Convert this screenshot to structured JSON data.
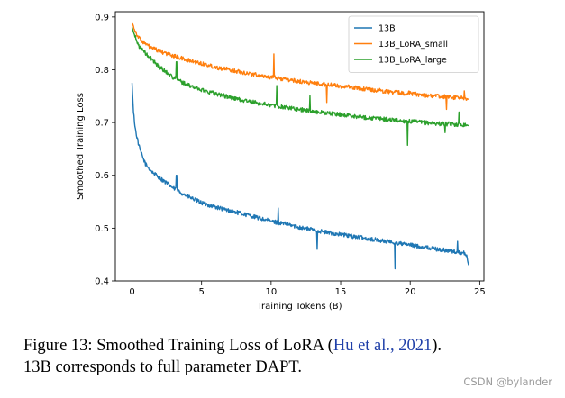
{
  "chart_data": {
    "type": "line",
    "xlabel": "Training Tokens (B)",
    "ylabel": "Smoothed Training Loss",
    "xlim": [
      -1.2,
      25.3
    ],
    "ylim": [
      0.4,
      0.91
    ],
    "xticks": [
      0,
      5,
      10,
      15,
      20,
      25
    ],
    "yticks": [
      0.4,
      0.5,
      0.6,
      0.7,
      0.8,
      0.9
    ],
    "xtick_labels": [
      "0",
      "5",
      "10",
      "15",
      "20",
      "25"
    ],
    "ytick_labels": [
      "0.4",
      "0.5",
      "0.6",
      "0.7",
      "0.8",
      "0.9"
    ],
    "legend_position": "top-right",
    "series": [
      {
        "name": "13B",
        "color": "#1f77b4",
        "x": [
          0,
          0.1,
          0.25,
          0.5,
          0.75,
          1,
          1.5,
          2,
          3,
          4,
          5,
          6,
          7,
          8,
          9,
          10,
          11,
          12,
          13,
          14,
          15,
          16,
          17,
          18,
          19,
          20,
          21,
          22,
          23,
          24,
          24.2
        ],
        "y": [
          0.775,
          0.72,
          0.685,
          0.655,
          0.635,
          0.62,
          0.605,
          0.595,
          0.575,
          0.56,
          0.548,
          0.54,
          0.533,
          0.527,
          0.52,
          0.513,
          0.508,
          0.502,
          0.497,
          0.492,
          0.488,
          0.484,
          0.48,
          0.476,
          0.472,
          0.468,
          0.464,
          0.46,
          0.456,
          0.452,
          0.43
        ],
        "noise": 0.004,
        "spikes": [
          {
            "x": 3.2,
            "y": 0.6
          },
          {
            "x": 10.5,
            "y": 0.538
          },
          {
            "x": 13.3,
            "y": 0.46
          },
          {
            "x": 18.9,
            "y": 0.423
          },
          {
            "x": 23.4,
            "y": 0.475
          }
        ]
      },
      {
        "name": "13B_LoRA_small",
        "color": "#ff7f0e",
        "x": [
          0,
          0.25,
          0.5,
          1,
          1.5,
          2,
          3,
          4,
          5,
          6,
          7,
          8,
          9,
          10,
          11,
          12,
          13,
          14,
          15,
          16,
          17,
          18,
          19,
          20,
          21,
          22,
          23,
          24,
          24.2
        ],
        "y": [
          0.89,
          0.872,
          0.86,
          0.848,
          0.84,
          0.835,
          0.826,
          0.818,
          0.812,
          0.805,
          0.8,
          0.795,
          0.79,
          0.786,
          0.782,
          0.778,
          0.775,
          0.772,
          0.769,
          0.766,
          0.763,
          0.76,
          0.757,
          0.755,
          0.752,
          0.75,
          0.748,
          0.746,
          0.744
        ],
        "noise": 0.004,
        "spikes": [
          {
            "x": 10.2,
            "y": 0.83
          },
          {
            "x": 14,
            "y": 0.738
          },
          {
            "x": 19.9,
            "y": 0.76
          },
          {
            "x": 22.6,
            "y": 0.725
          },
          {
            "x": 23.9,
            "y": 0.76
          }
        ]
      },
      {
        "name": "13B_LoRA_large",
        "color": "#2ca02c",
        "x": [
          0,
          0.25,
          0.5,
          1,
          1.5,
          2,
          3,
          4,
          5,
          6,
          7,
          8,
          9,
          10,
          11,
          12,
          13,
          14,
          15,
          16,
          17,
          18,
          19,
          20,
          21,
          22,
          23,
          24,
          24.2
        ],
        "y": [
          0.88,
          0.86,
          0.845,
          0.83,
          0.818,
          0.805,
          0.785,
          0.771,
          0.762,
          0.755,
          0.748,
          0.742,
          0.737,
          0.733,
          0.729,
          0.725,
          0.721,
          0.718,
          0.715,
          0.712,
          0.709,
          0.707,
          0.704,
          0.702,
          0.7,
          0.698,
          0.697,
          0.696,
          0.694
        ],
        "noise": 0.004,
        "spikes": [
          {
            "x": 3.2,
            "y": 0.815
          },
          {
            "x": 10.4,
            "y": 0.77
          },
          {
            "x": 12.8,
            "y": 0.751
          },
          {
            "x": 19.8,
            "y": 0.657
          },
          {
            "x": 22.5,
            "y": 0.681
          },
          {
            "x": 23.5,
            "y": 0.72
          }
        ]
      }
    ]
  },
  "caption": {
    "prefix": "Figure 13: Smoothed Training Loss of LoRA (",
    "citation": "Hu et al., 2021",
    "suffix": ").",
    "line2": "13B corresponds to full parameter DAPT."
  },
  "watermark": "CSDN @bylander"
}
